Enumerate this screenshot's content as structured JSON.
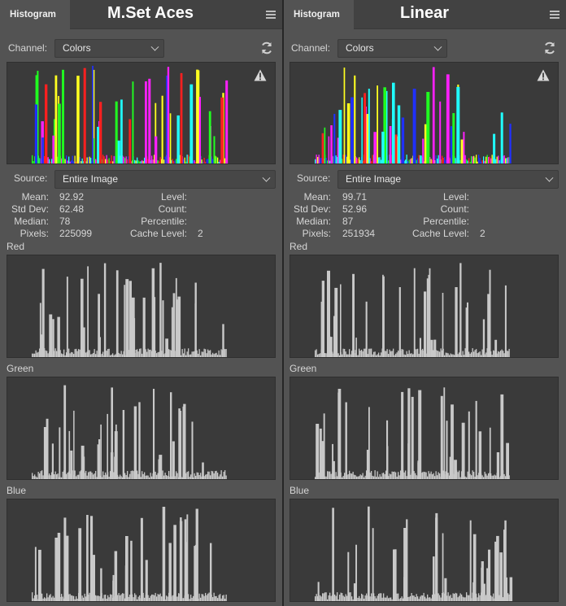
{
  "panels": [
    {
      "tab_label": "Histogram",
      "doc_title": "M.Set Aces",
      "channel_label": "Channel:",
      "channel_value": "Colors",
      "source_label": "Source:",
      "source_value": "Entire Image",
      "stats": {
        "mean_label": "Mean:",
        "mean": "92.92",
        "std_label": "Std Dev:",
        "std": "62.48",
        "median_label": "Median:",
        "median": "78",
        "pixels_label": "Pixels:",
        "pixels": "225099",
        "level_label": "Level:",
        "count_label": "Count:",
        "percentile_label": "Percentile:",
        "cache_label": "Cache Level:",
        "cache": "2"
      },
      "channels": {
        "red": "Red",
        "green": "Green",
        "blue": "Blue"
      }
    },
    {
      "tab_label": "Histogram",
      "doc_title": "Linear",
      "channel_label": "Channel:",
      "channel_value": "Colors",
      "source_label": "Source:",
      "source_value": "Entire Image",
      "stats": {
        "mean_label": "Mean:",
        "mean": "99.71",
        "std_label": "Std Dev:",
        "std": "52.96",
        "median_label": "Median:",
        "median": "87",
        "pixels_label": "Pixels:",
        "pixels": "251934",
        "level_label": "Level:",
        "count_label": "Count:",
        "percentile_label": "Percentile:",
        "cache_label": "Cache Level:",
        "cache": "2"
      },
      "channels": {
        "red": "Red",
        "green": "Green",
        "blue": "Blue"
      }
    }
  ],
  "colors": {
    "panel_bg": "#535353",
    "hist_bg": "#3a3a3a",
    "hist_bar": "#c9c9c9",
    "red": "#ff2020",
    "green": "#20ff20",
    "blue": "#2030ff",
    "yellow": "#ffff20",
    "magenta": "#ff20ff",
    "cyan": "#20ffff"
  },
  "icons": {
    "menu": "hamburger-menu-icon",
    "refresh": "refresh-icon",
    "warning": "warning-icon",
    "dropdown": "chevron-down-icon"
  }
}
